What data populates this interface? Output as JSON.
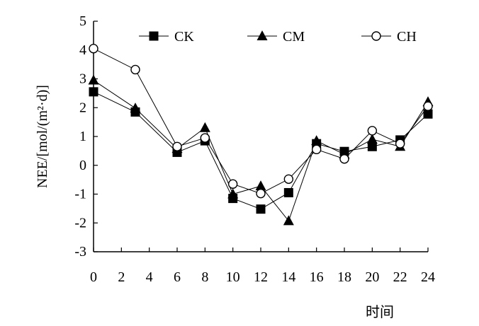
{
  "chart_data": {
    "type": "line",
    "title": "",
    "xlabel": "时间",
    "ylabel": "NEE/[mol/(m²·d)]",
    "x": [
      0,
      3,
      6,
      8,
      10,
      12,
      14,
      16,
      18,
      20,
      22,
      24
    ],
    "x_ticks": [
      0,
      2,
      4,
      6,
      8,
      10,
      12,
      14,
      16,
      18,
      20,
      22,
      24
    ],
    "xlim": [
      0,
      24
    ],
    "ylim": [
      -3,
      5
    ],
    "y_ticks": [
      -3,
      -2,
      -1,
      0,
      1,
      2,
      3,
      4,
      5
    ],
    "grid": false,
    "legend_position": "top",
    "series": [
      {
        "name": "CK",
        "marker": "filled-square",
        "values": [
          2.55,
          1.85,
          0.45,
          0.85,
          -1.15,
          -1.52,
          -0.95,
          0.75,
          0.48,
          0.65,
          0.88,
          1.78
        ]
      },
      {
        "name": "CM",
        "marker": "filled-triangle",
        "values": [
          2.95,
          1.98,
          0.58,
          1.3,
          -1.0,
          -0.72,
          -1.93,
          0.85,
          0.38,
          0.9,
          0.65,
          2.2
        ]
      },
      {
        "name": "CH",
        "marker": "open-circle",
        "values": [
          4.05,
          3.32,
          0.65,
          0.95,
          -0.65,
          -0.98,
          -0.48,
          0.55,
          0.22,
          1.2,
          0.75,
          2.05
        ]
      }
    ]
  }
}
